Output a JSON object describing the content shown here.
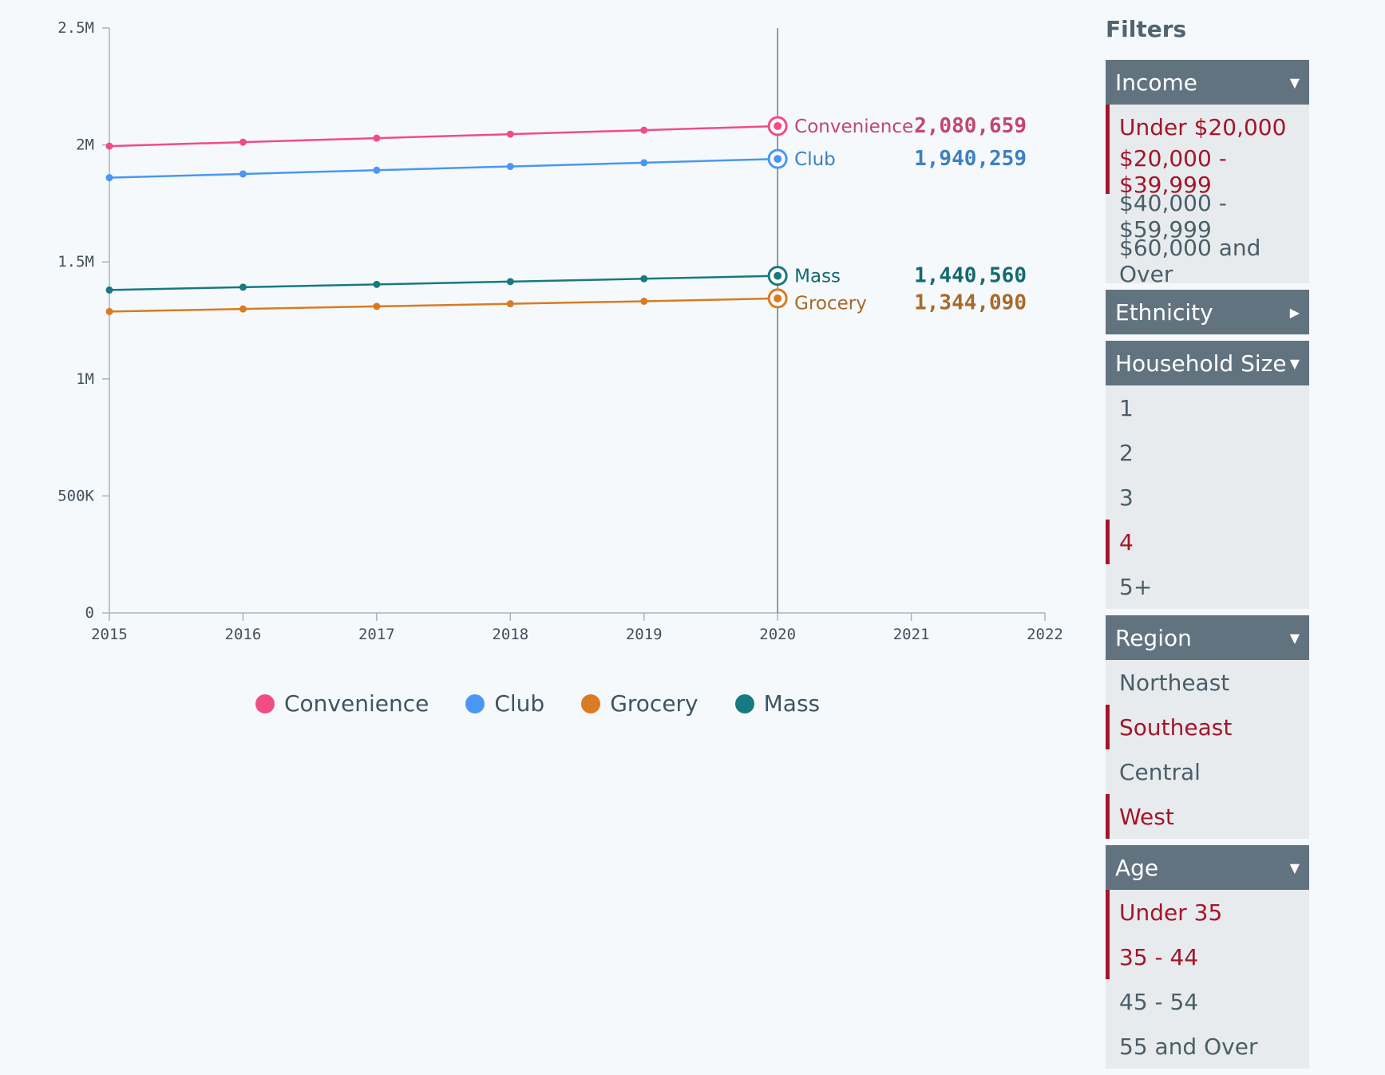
{
  "chart_data": {
    "type": "line",
    "x": [
      2015,
      2016,
      2017,
      2018,
      2019,
      2020
    ],
    "x_ticks": [
      "2015",
      "2016",
      "2017",
      "2018",
      "2019",
      "2020",
      "2021",
      "2022"
    ],
    "xlim": [
      2015,
      2022
    ],
    "y_ticks": [
      "0",
      "500K",
      "1M",
      "1.5M",
      "2M",
      "2.5M"
    ],
    "ylim": [
      0,
      2500000
    ],
    "highlight_x": "2020",
    "series": [
      {
        "name": "Convenience",
        "color": "#f24c84",
        "label_color": "#c2476e",
        "values": [
          1995000,
          2012000,
          2029000,
          2046000,
          2063000,
          2080659
        ],
        "value_label": "2,080,659"
      },
      {
        "name": "Club",
        "color": "#4a97f2",
        "label_color": "#3d7fc2",
        "values": [
          1860000,
          1876000,
          1892000,
          1908000,
          1924000,
          1940259
        ],
        "value_label": "1,940,259"
      },
      {
        "name": "Grocery",
        "color": "#d97b22",
        "label_color": "#a9692a",
        "values": [
          1288000,
          1299000,
          1310000,
          1321000,
          1332000,
          1344090
        ],
        "value_label": "1,344,090"
      },
      {
        "name": "Mass",
        "color": "#177a80",
        "label_color": "#136a70",
        "values": [
          1380000,
          1392000,
          1404000,
          1416000,
          1428000,
          1440560
        ],
        "value_label": "1,440,560"
      }
    ],
    "legend": [
      "Convenience",
      "Club",
      "Grocery",
      "Mass"
    ]
  },
  "filters": {
    "title": "Filters",
    "groups": [
      {
        "label": "Income",
        "expanded": true,
        "options": [
          {
            "label": "Under $20,000",
            "selected": true
          },
          {
            "label": "$20,000 - $39,999",
            "selected": true
          },
          {
            "label": "$40,000 - $59,999",
            "selected": false
          },
          {
            "label": "$60,000 and Over",
            "selected": false
          }
        ]
      },
      {
        "label": "Ethnicity",
        "expanded": false,
        "options": []
      },
      {
        "label": "Household Size",
        "expanded": true,
        "options": [
          {
            "label": "1",
            "selected": false
          },
          {
            "label": "2",
            "selected": false
          },
          {
            "label": "3",
            "selected": false
          },
          {
            "label": "4",
            "selected": true
          },
          {
            "label": "5+",
            "selected": false
          }
        ]
      },
      {
        "label": "Region",
        "expanded": true,
        "options": [
          {
            "label": "Northeast",
            "selected": false
          },
          {
            "label": "Southeast",
            "selected": true
          },
          {
            "label": "Central",
            "selected": false
          },
          {
            "label": "West",
            "selected": true
          }
        ]
      },
      {
        "label": "Age",
        "expanded": true,
        "options": [
          {
            "label": "Under 35",
            "selected": true
          },
          {
            "label": "35 - 44",
            "selected": true
          },
          {
            "label": "45 - 54",
            "selected": false
          },
          {
            "label": "55 and Over",
            "selected": false
          }
        ]
      }
    ]
  }
}
